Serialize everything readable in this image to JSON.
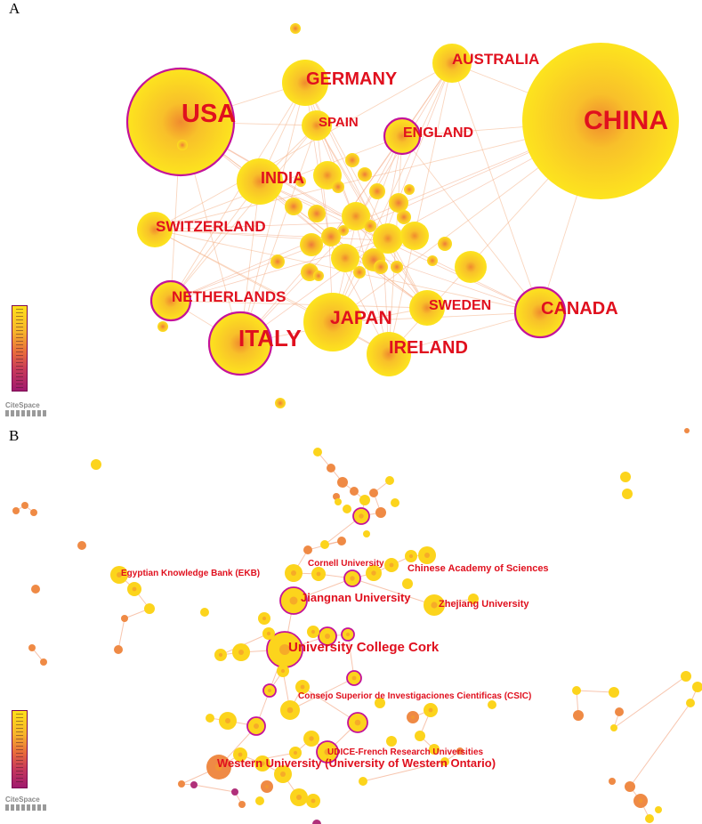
{
  "panelA": {
    "letter": "A",
    "countries": [
      "USA",
      "CHINA",
      "GERMANY",
      "AUSTRALIA",
      "SPAIN",
      "ENGLAND",
      "INDIA",
      "SWITZERLAND",
      "NETHERLANDS",
      "JAPAN",
      "SWEDEN",
      "CANADA",
      "ITALY",
      "IRELAND"
    ],
    "brand": "CiteSpace"
  },
  "panelB": {
    "letter": "B",
    "institutions": [
      "Cornell University",
      "Chinese Academy of Sciences",
      "Egyptian Knowledge Bank (EKB)",
      "Jiangnan University",
      "Zhejiang University",
      "University College Cork",
      "Consejo Superior de Investigaciones Cientificas (CSIC)",
      "UDICE-French Research Universities",
      "Western University (University of Western Ontario)"
    ],
    "brand": "CiteSpace"
  },
  "colors": {
    "node": "#fde41e",
    "node_center": "#f39a2e",
    "label": "#e0101e",
    "ring": "#c4129a",
    "link": "#f5b48a"
  }
}
